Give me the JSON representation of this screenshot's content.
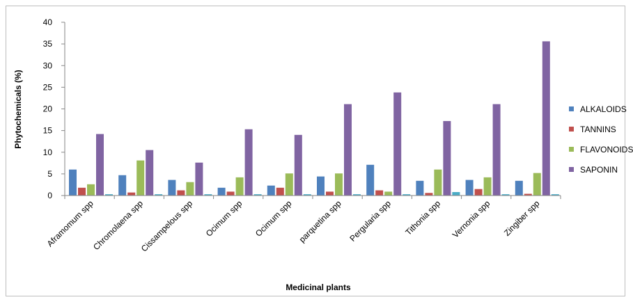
{
  "chart_data": {
    "type": "bar",
    "title": "",
    "xlabel": "Medicinal plants",
    "ylabel": "Phytochemicals (%)",
    "ylim": [
      0,
      40
    ],
    "yticks": [
      0,
      5,
      10,
      15,
      20,
      25,
      30,
      35,
      40
    ],
    "grid": false,
    "legend_position": "right",
    "categories": [
      "Aframomum spp",
      "Chromolaena spp",
      "Cissampelous spp",
      "Ocimum spp",
      "Ocimum spp",
      "parquetina spp",
      "Pergularia spp",
      "Tithonia spp",
      "Vernonia spp",
      "Zingiber spp"
    ],
    "series": [
      {
        "name": "ALKALOIDS",
        "color": "#4f81bd",
        "values": [
          6.0,
          4.7,
          3.6,
          1.8,
          2.3,
          4.4,
          7.1,
          3.4,
          3.6,
          3.4
        ]
      },
      {
        "name": "TANNINS",
        "color": "#c0504d",
        "values": [
          1.8,
          0.7,
          1.2,
          0.9,
          1.8,
          0.9,
          1.2,
          0.6,
          1.5,
          0.4
        ]
      },
      {
        "name": "FLAVONOIDS",
        "color": "#9bbb59",
        "values": [
          2.6,
          8.1,
          3.1,
          4.2,
          5.1,
          5.1,
          0.9,
          6.0,
          4.2,
          5.2
        ]
      },
      {
        "name": "SAPONIN",
        "color": "#8064a2",
        "values": [
          14.2,
          10.5,
          7.6,
          15.3,
          14.0,
          21.1,
          23.8,
          17.2,
          21.1,
          35.6
        ]
      },
      {
        "name": "",
        "color": "#4bacc6",
        "values": [
          0.3,
          0.3,
          0.3,
          0.3,
          0.3,
          0.3,
          0.3,
          0.8,
          0.3,
          0.3
        ]
      }
    ]
  }
}
